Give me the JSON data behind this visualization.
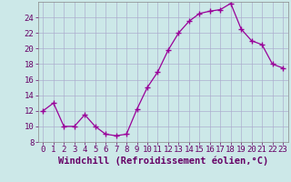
{
  "x": [
    0,
    1,
    2,
    3,
    4,
    5,
    6,
    7,
    8,
    9,
    10,
    11,
    12,
    13,
    14,
    15,
    16,
    17,
    18,
    19,
    20,
    21,
    22,
    23
  ],
  "y": [
    12,
    13,
    10,
    10,
    11.5,
    10,
    9,
    8.8,
    9,
    12.2,
    15,
    17,
    19.8,
    22,
    23.5,
    24.5,
    24.8,
    25,
    25.8,
    22.5,
    21,
    20.5,
    18,
    17.5
  ],
  "line_color": "#990099",
  "marker": "+",
  "marker_size": 4,
  "bg_color": "#cce8e8",
  "grid_color": "#aaaacc",
  "xlabel": "Windchill (Refroidissement éolien,°C)",
  "xlabel_color": "#660066",
  "tick_color": "#660066",
  "ylim": [
    8,
    26
  ],
  "yticks": [
    8,
    10,
    12,
    14,
    16,
    18,
    20,
    22,
    24
  ],
  "xlim": [
    -0.5,
    23.5
  ],
  "xticks": [
    0,
    1,
    2,
    3,
    4,
    5,
    6,
    7,
    8,
    9,
    10,
    11,
    12,
    13,
    14,
    15,
    16,
    17,
    18,
    19,
    20,
    21,
    22,
    23
  ],
  "font_family": "monospace",
  "tick_fontsize": 6.5,
  "xlabel_fontsize": 7.5
}
